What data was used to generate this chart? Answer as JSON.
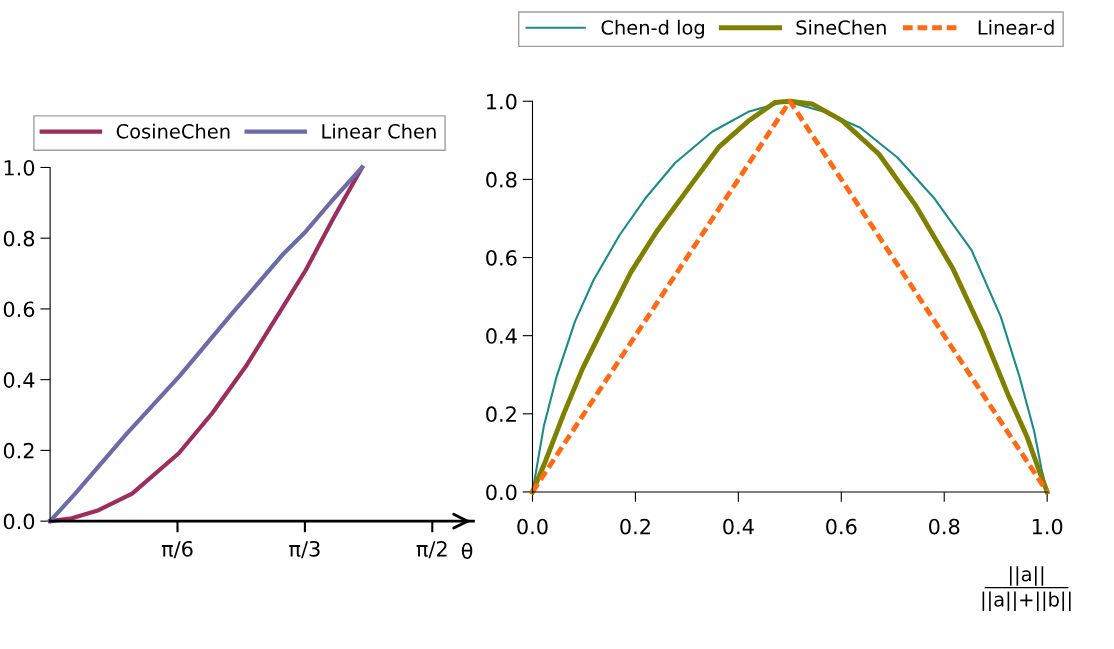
{
  "chart_data": [
    {
      "type": "line",
      "xlabel": "θ",
      "legend": "top",
      "grid": false,
      "marker": "none",
      "xlim": [
        0,
        1.74
      ],
      "xticks": [
        {
          "value": 0.5236,
          "label": "π/6"
        },
        {
          "value": 1.0472,
          "label": "π/3"
        },
        {
          "value": 1.5708,
          "label": "π/2"
        }
      ],
      "ylim": [
        0,
        1
      ],
      "yticks": [
        {
          "value": 0,
          "label": "0.0"
        },
        {
          "value": 0.2,
          "label": "0.2"
        },
        {
          "value": 0.4,
          "label": "0.4"
        },
        {
          "value": 0.6,
          "label": "0.6"
        },
        {
          "value": 0.8,
          "label": "0.8"
        },
        {
          "value": 1,
          "label": "1.0"
        }
      ],
      "series": [
        {
          "name": "CosineChen",
          "color": "#9b2d5f",
          "x": [
            0,
            0.089,
            0.199,
            0.337,
            0.529,
            0.666,
            0.804,
            0.941,
            1.051,
            1.161,
            1.282
          ],
          "values": [
            0,
            0.008,
            0.031,
            0.078,
            0.192,
            0.305,
            0.437,
            0.588,
            0.71,
            0.852,
            1.0
          ]
        },
        {
          "name": "Linear Chen",
          "color": "#6b6ba8",
          "x": [
            0,
            0.103,
            0.316,
            0.529,
            0.749,
            0.955,
            1.051,
            1.161,
            1.282
          ],
          "values": [
            0,
            0.078,
            0.248,
            0.408,
            0.588,
            0.753,
            0.819,
            0.908,
            1.0
          ]
        }
      ]
    },
    {
      "type": "line",
      "xlabel": "||a||\n||a||+||b||",
      "legend": "top",
      "grid": false,
      "marker": "none",
      "xlim": [
        0,
        1
      ],
      "xticks": [
        {
          "value": 0,
          "label": "0.0"
        },
        {
          "value": 0.2,
          "label": "0.2"
        },
        {
          "value": 0.4,
          "label": "0.4"
        },
        {
          "value": 0.6,
          "label": "0.6"
        },
        {
          "value": 0.8,
          "label": "0.8"
        },
        {
          "value": 1,
          "label": "1.0"
        }
      ],
      "ylim": [
        0,
        1
      ],
      "yticks": [
        {
          "value": 0,
          "label": "0.0"
        },
        {
          "value": 0.2,
          "label": "0.2"
        },
        {
          "value": 0.4,
          "label": "0.4"
        },
        {
          "value": 0.6,
          "label": "0.6"
        },
        {
          "value": 0.8,
          "label": "0.8"
        },
        {
          "value": 1,
          "label": "1.0"
        }
      ],
      "series": [
        {
          "name": "Chen-d log",
          "color": "#1a8a8a",
          "x": [
            0,
            0.022,
            0.047,
            0.083,
            0.119,
            0.169,
            0.219,
            0.277,
            0.349,
            0.421,
            0.493,
            0.565,
            0.637,
            0.709,
            0.781,
            0.853,
            0.91,
            0.946,
            0.975,
            0.989,
            1
          ],
          "values": [
            0,
            0.168,
            0.296,
            0.438,
            0.543,
            0.657,
            0.751,
            0.842,
            0.922,
            0.974,
            1.0,
            0.974,
            0.932,
            0.856,
            0.751,
            0.619,
            0.448,
            0.296,
            0.154,
            0.059,
            0
          ]
        },
        {
          "name": "SineChen",
          "color": "#808000",
          "x": [
            0,
            0.025,
            0.061,
            0.097,
            0.14,
            0.191,
            0.241,
            0.299,
            0.363,
            0.421,
            0.471,
            0.5,
            0.543,
            0.601,
            0.673,
            0.745,
            0.817,
            0.874,
            0.924,
            0.96,
            0.986,
            1
          ],
          "values": [
            0,
            0.078,
            0.201,
            0.315,
            0.429,
            0.562,
            0.666,
            0.77,
            0.884,
            0.951,
            0.997,
            1.0,
            0.993,
            0.951,
            0.865,
            0.732,
            0.571,
            0.41,
            0.249,
            0.144,
            0.049,
            0
          ]
        },
        {
          "name": "Linear-d",
          "color": "#ff6a13",
          "line_style": "dashed",
          "x": [
            0,
            0.25,
            0.5,
            0.75,
            1
          ],
          "values": [
            0,
            0.5,
            1.0,
            0.5,
            0
          ]
        }
      ]
    }
  ]
}
